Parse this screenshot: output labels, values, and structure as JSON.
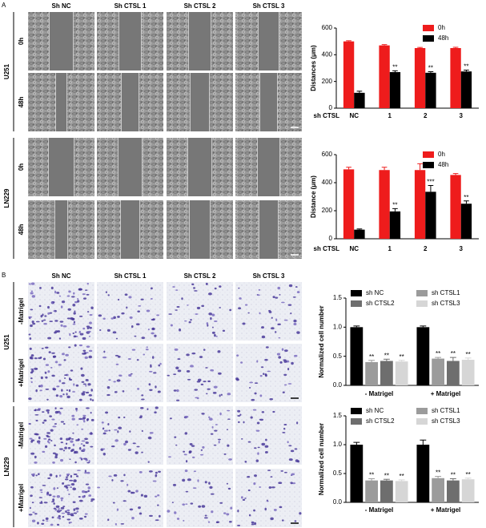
{
  "figure": {
    "panel_labels": [
      "A",
      "B"
    ],
    "panel_a": {
      "columns": [
        "Sh NC",
        "Sh CTSL 1",
        "Sh CTSL 2",
        "Sh CTSL 3"
      ],
      "groups": [
        {
          "name": "U251",
          "rows": [
            "0h",
            "48h"
          ]
        },
        {
          "name": "LN229",
          "rows": [
            "0h",
            "48h"
          ]
        }
      ]
    },
    "panel_b": {
      "columns": [
        "Sh NC",
        "Sh CTSL 1",
        "Sh CTSL 2",
        "Sh CTSL 3"
      ],
      "groups": [
        {
          "name": "U251",
          "rows": [
            "-Matrigel",
            "+Matrigel"
          ]
        },
        {
          "name": "LN229",
          "rows": [
            "-Matrigel",
            "+Matrigel"
          ]
        }
      ]
    }
  },
  "chart_data": [
    {
      "type": "bar",
      "ylabel": "Distances (μm)",
      "xlabel": "sh CTSL",
      "categories": [
        "NC",
        "1",
        "2",
        "3"
      ],
      "series": [
        {
          "name": "0h",
          "color": "#ee1c1c",
          "values": [
            500,
            470,
            450,
            450
          ],
          "errors": [
            5,
            6,
            5,
            6
          ],
          "significance": [
            null,
            null,
            null,
            null
          ]
        },
        {
          "name": "48h",
          "color": "#000000",
          "values": [
            115,
            270,
            265,
            275
          ],
          "errors": [
            12,
            10,
            8,
            10
          ],
          "significance": [
            null,
            "**",
            "**",
            "**"
          ]
        }
      ],
      "ylim": [
        0,
        600
      ],
      "yticks": [
        0,
        200,
        400,
        600
      ],
      "legend": "upper right",
      "legend_columns": 1
    },
    {
      "type": "bar",
      "ylabel": "Distance (μm)",
      "xlabel": "sh CTSL",
      "categories": [
        "NC",
        "1",
        "2",
        "3"
      ],
      "series": [
        {
          "name": "0h",
          "color": "#ee1c1c",
          "values": [
            495,
            490,
            490,
            455
          ],
          "errors": [
            15,
            20,
            45,
            10
          ],
          "significance": [
            null,
            null,
            null,
            null
          ]
        },
        {
          "name": "48h",
          "color": "#000000",
          "values": [
            65,
            195,
            335,
            250
          ],
          "errors": [
            5,
            20,
            45,
            20
          ],
          "significance": [
            null,
            "**",
            "***",
            "**"
          ]
        }
      ],
      "ylim": [
        0,
        600
      ],
      "yticks": [
        0,
        200,
        400,
        600
      ],
      "legend": "upper right",
      "legend_columns": 1
    },
    {
      "type": "bar",
      "ylabel": "Normalized cell number",
      "categories": [
        "- Matrigel",
        "+ Matrigel"
      ],
      "series": [
        {
          "name": "sh NC",
          "color": "#000000",
          "values": [
            1.0,
            1.0
          ],
          "errors": [
            0.02,
            0.02
          ],
          "significance": [
            null,
            null
          ]
        },
        {
          "name": "sh CTSL1",
          "color": "#9b9b9b",
          "values": [
            0.4,
            0.46
          ],
          "errors": [
            0.03,
            0.02
          ],
          "significance": [
            "**",
            "**"
          ]
        },
        {
          "name": "sh CTSL2",
          "color": "#6e6e6e",
          "values": [
            0.42,
            0.42
          ],
          "errors": [
            0.03,
            0.06
          ],
          "significance": [
            "**",
            "**"
          ]
        },
        {
          "name": "sh CTSL3",
          "color": "#d6d6d6",
          "values": [
            0.41,
            0.44
          ],
          "errors": [
            0.02,
            0.03
          ],
          "significance": [
            "**",
            "**"
          ]
        }
      ],
      "ylim": [
        0,
        1.5
      ],
      "yticks": [
        {
          "value": 0,
          "label": "0.0"
        },
        0.5,
        {
          "value": 1,
          "label": "1.0"
        },
        1.5
      ],
      "legend": "upper",
      "legend_columns": 2
    },
    {
      "type": "bar",
      "ylabel": "Normalized cell number",
      "categories": [
        "- Matrigel",
        "+ Matrigel"
      ],
      "series": [
        {
          "name": "sh NC",
          "color": "#000000",
          "values": [
            1.0,
            1.0
          ],
          "errors": [
            0.04,
            0.08
          ],
          "significance": [
            null,
            null
          ]
        },
        {
          "name": "sh CTSL1",
          "color": "#9b9b9b",
          "values": [
            0.38,
            0.42
          ],
          "errors": [
            0.03,
            0.03
          ],
          "significance": [
            "**",
            "**"
          ]
        },
        {
          "name": "sh CTSL2",
          "color": "#6e6e6e",
          "values": [
            0.38,
            0.38
          ],
          "errors": [
            0.02,
            0.03
          ],
          "significance": [
            "**",
            "**"
          ]
        },
        {
          "name": "sh CTSL3",
          "color": "#d6d6d6",
          "values": [
            0.37,
            0.4
          ],
          "errors": [
            0.02,
            0.02
          ],
          "significance": [
            "**",
            "**"
          ]
        }
      ],
      "ylim": [
        0,
        1.5
      ],
      "yticks": [
        {
          "value": 0,
          "label": "0.0"
        },
        0.5,
        {
          "value": 1,
          "label": "1.0"
        },
        1.5
      ],
      "legend": "upper",
      "legend_columns": 2
    }
  ]
}
